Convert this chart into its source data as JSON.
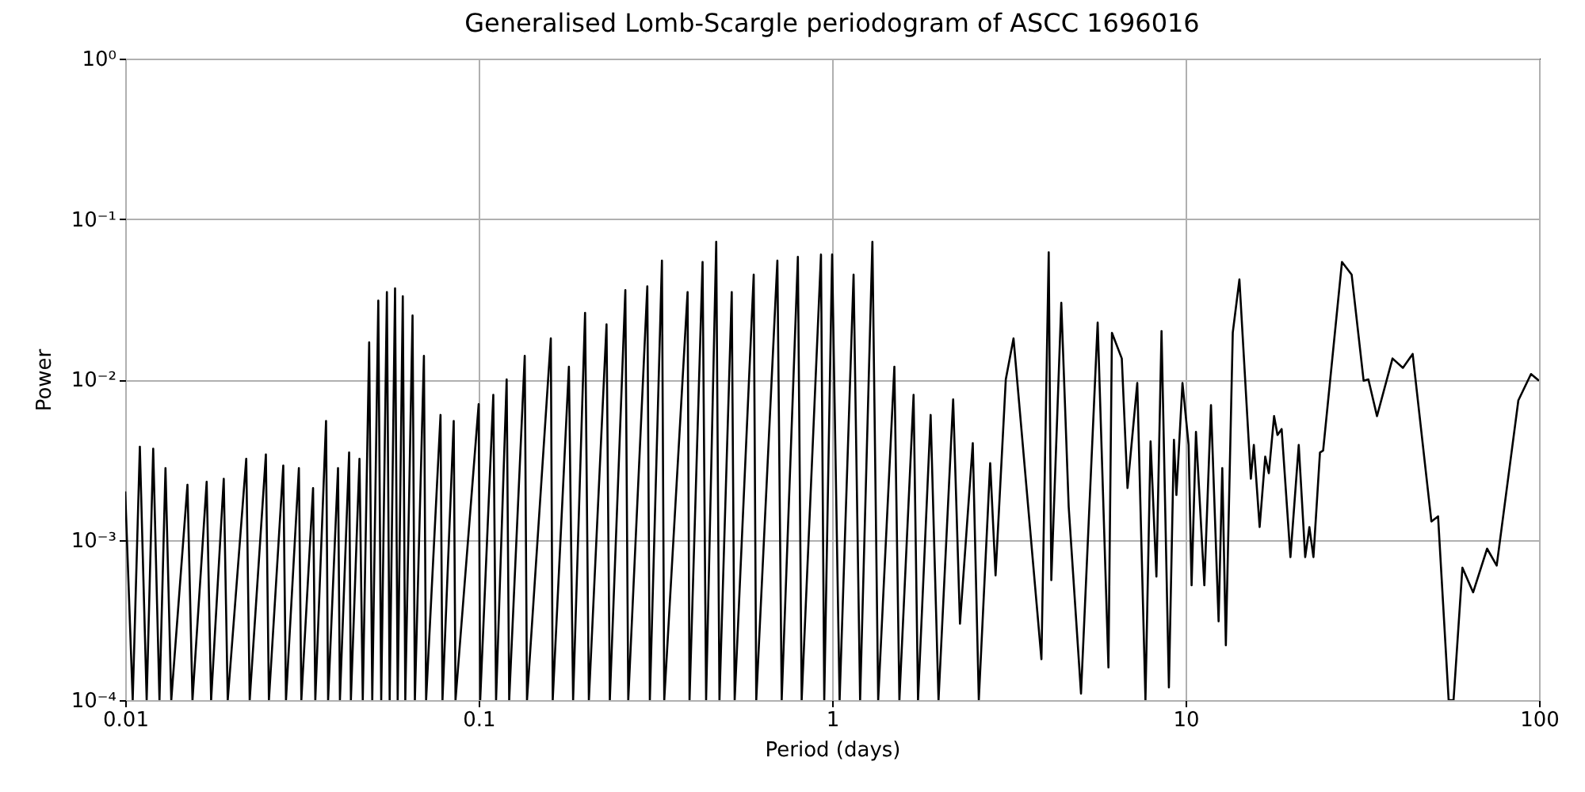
{
  "chart_data": {
    "type": "line",
    "title": "Generalised Lomb-Scargle periodogram of ASCC 1696016",
    "xlabel": "Period (days)",
    "ylabel": "Power",
    "log": "xy",
    "grid": true,
    "xlim": [
      0.01,
      100
    ],
    "ylim": [
      0.0001,
      1
    ],
    "xticks": [
      0.01,
      0.1,
      1,
      10,
      100
    ],
    "yticks": [
      {
        "value": 0.0001,
        "label": "10⁻⁴"
      },
      {
        "value": 0.001,
        "label": "10⁻³"
      },
      {
        "value": 0.01,
        "label": "10⁻²"
      },
      {
        "value": 0.1,
        "label": "10⁻¹"
      },
      {
        "value": 1,
        "label": "10⁰"
      }
    ],
    "x": [
      0.01,
      0.0105,
      0.011,
      0.0115,
      0.012,
      0.0125,
      0.013,
      0.0135,
      0.015,
      0.0155,
      0.017,
      0.0175,
      0.019,
      0.0195,
      0.022,
      0.0225,
      0.025,
      0.0255,
      0.028,
      0.0285,
      0.031,
      0.0315,
      0.034,
      0.0345,
      0.037,
      0.0375,
      0.04,
      0.0405,
      0.043,
      0.0435,
      0.046,
      0.047,
      0.049,
      0.05,
      0.052,
      0.053,
      0.055,
      0.056,
      0.058,
      0.059,
      0.061,
      0.062,
      0.065,
      0.066,
      0.07,
      0.071,
      0.078,
      0.079,
      0.085,
      0.086,
      0.1,
      0.101,
      0.11,
      0.112,
      0.12,
      0.122,
      0.135,
      0.137,
      0.16,
      0.162,
      0.18,
      0.185,
      0.2,
      0.205,
      0.23,
      0.235,
      0.26,
      0.265,
      0.3,
      0.305,
      0.33,
      0.335,
      0.39,
      0.395,
      0.43,
      0.44,
      0.47,
      0.48,
      0.52,
      0.53,
      0.6,
      0.61,
      0.7,
      0.72,
      0.8,
      0.82,
      0.93,
      0.95,
      1.0,
      1.05,
      1.15,
      1.2,
      1.3,
      1.35,
      1.5,
      1.55,
      1.7,
      1.75,
      1.9,
      2.0,
      2.2,
      2.3,
      2.5,
      2.6,
      2.8,
      2.9,
      3.1,
      3.26,
      3.91,
      4.1,
      4.17,
      4.45,
      4.67,
      5.06,
      5.64,
      6.05,
      6.19,
      6.6,
      6.85,
      7.3,
      7.7,
      7.96,
      8.27,
      8.55,
      8.97,
      9.27,
      9.42,
      9.8,
      10.2,
      10.4,
      10.7,
      11.3,
      11.8,
      12.4,
      12.7,
      13.0,
      13.6,
      14.2,
      15.3,
      15.6,
      16.2,
      16.8,
      17.2,
      17.8,
      18.2,
      18.7,
      19.8,
      20.9,
      21.8,
      22.4,
      23.0,
      24.0,
      24.5,
      27.7,
      29.5,
      31.9,
      32.9,
      34.8,
      38.5,
      41.2,
      43.9,
      49.6,
      51.8,
      55.5,
      57.3,
      60.7,
      65.1,
      71.3,
      75.9,
      87.4,
      94.9,
      100
    ],
    "series": [
      {
        "color": "#000000",
        "values": [
          0.002,
          0.0001,
          0.0038,
          0.0001,
          0.0037,
          0.0001,
          0.0028,
          0.0001,
          0.0022,
          0.0001,
          0.0023,
          0.0001,
          0.0024,
          0.0001,
          0.0032,
          0.0001,
          0.0034,
          0.0001,
          0.0029,
          0.0001,
          0.0028,
          0.0001,
          0.0021,
          0.0001,
          0.0055,
          0.0001,
          0.0028,
          0.0001,
          0.0035,
          0.0001,
          0.0032,
          0.0001,
          0.017,
          0.0001,
          0.031,
          0.0001,
          0.035,
          0.0001,
          0.037,
          0.0001,
          0.033,
          0.0001,
          0.025,
          0.0001,
          0.014,
          0.0001,
          0.006,
          0.0001,
          0.0055,
          0.0001,
          0.007,
          0.0001,
          0.008,
          0.0001,
          0.01,
          0.0001,
          0.014,
          0.0001,
          0.018,
          0.0001,
          0.012,
          0.0001,
          0.026,
          0.0001,
          0.022,
          0.0001,
          0.036,
          0.0001,
          0.038,
          0.0001,
          0.055,
          0.0001,
          0.035,
          0.0001,
          0.054,
          0.0001,
          0.072,
          0.0001,
          0.035,
          0.0001,
          0.045,
          0.0001,
          0.055,
          0.0001,
          0.058,
          0.0001,
          0.06,
          0.0001,
          0.06,
          0.0001,
          0.045,
          0.0001,
          0.072,
          0.0001,
          0.012,
          0.0001,
          0.008,
          0.0001,
          0.006,
          0.0001,
          0.0075,
          0.0003,
          0.004,
          0.0001,
          0.003,
          0.0006,
          0.01,
          0.018,
          0.00018,
          0.062,
          0.00056,
          0.03,
          0.0016,
          0.00011,
          0.0226,
          0.00016,
          0.0195,
          0.0135,
          0.0021,
          0.0095,
          0.0001,
          0.0041,
          0.00059,
          0.02,
          0.00012,
          0.0042,
          0.0019,
          0.0095,
          0.0039,
          0.00052,
          0.0047,
          0.00052,
          0.0069,
          0.00031,
          0.0028,
          0.00022,
          0.0196,
          0.042,
          0.0024,
          0.0039,
          0.0012,
          0.0033,
          0.0026,
          0.0059,
          0.0045,
          0.0049,
          0.00078,
          0.0039,
          0.00078,
          0.0012,
          0.00078,
          0.0035,
          0.0036,
          0.054,
          0.045,
          0.0098,
          0.01,
          0.0059,
          0.0135,
          0.0118,
          0.0144,
          0.0013,
          0.0014,
          0.0001,
          0.0001,
          0.00067,
          0.00047,
          0.00088,
          0.00069,
          0.0074,
          0.0108,
          0.0098
        ]
      }
    ]
  }
}
